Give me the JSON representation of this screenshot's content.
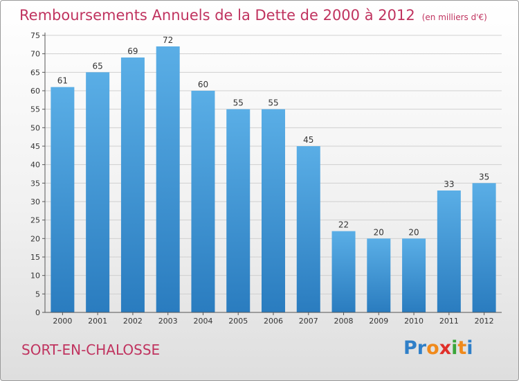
{
  "chart_data": {
    "type": "bar",
    "title": "Remboursements Annuels de la Dette de 2000 à 2012",
    "unit_note": "(en milliers d'€)",
    "categories": [
      "2000",
      "2001",
      "2002",
      "2003",
      "2004",
      "2005",
      "2006",
      "2007",
      "2008",
      "2009",
      "2010",
      "2011",
      "2012"
    ],
    "values": [
      61,
      65,
      69,
      72,
      60,
      55,
      55,
      45,
      22,
      20,
      20,
      33,
      35
    ],
    "ylim": [
      0,
      75
    ],
    "yticks": [
      0,
      5,
      10,
      15,
      20,
      25,
      30,
      35,
      40,
      45,
      50,
      55,
      60,
      65,
      70,
      75
    ],
    "grid": true,
    "bar_color_top": "#5aaee6",
    "bar_color_bottom": "#2a7cbf"
  },
  "place_name": "SORT-EN-CHALOSSE",
  "logo": {
    "text": "Proxiti",
    "letters": [
      "P",
      "r",
      "o",
      "x",
      "i",
      "t",
      "i"
    ],
    "colors": [
      "#2f7fc8",
      "#2f7fc8",
      "#f08a1c",
      "#e0302a",
      "#3aa53a",
      "#f08a1c",
      "#2f7fc8"
    ]
  },
  "colors": {
    "title": "#c0335f",
    "grid": "#cfcfcf",
    "axis": "#555555"
  }
}
